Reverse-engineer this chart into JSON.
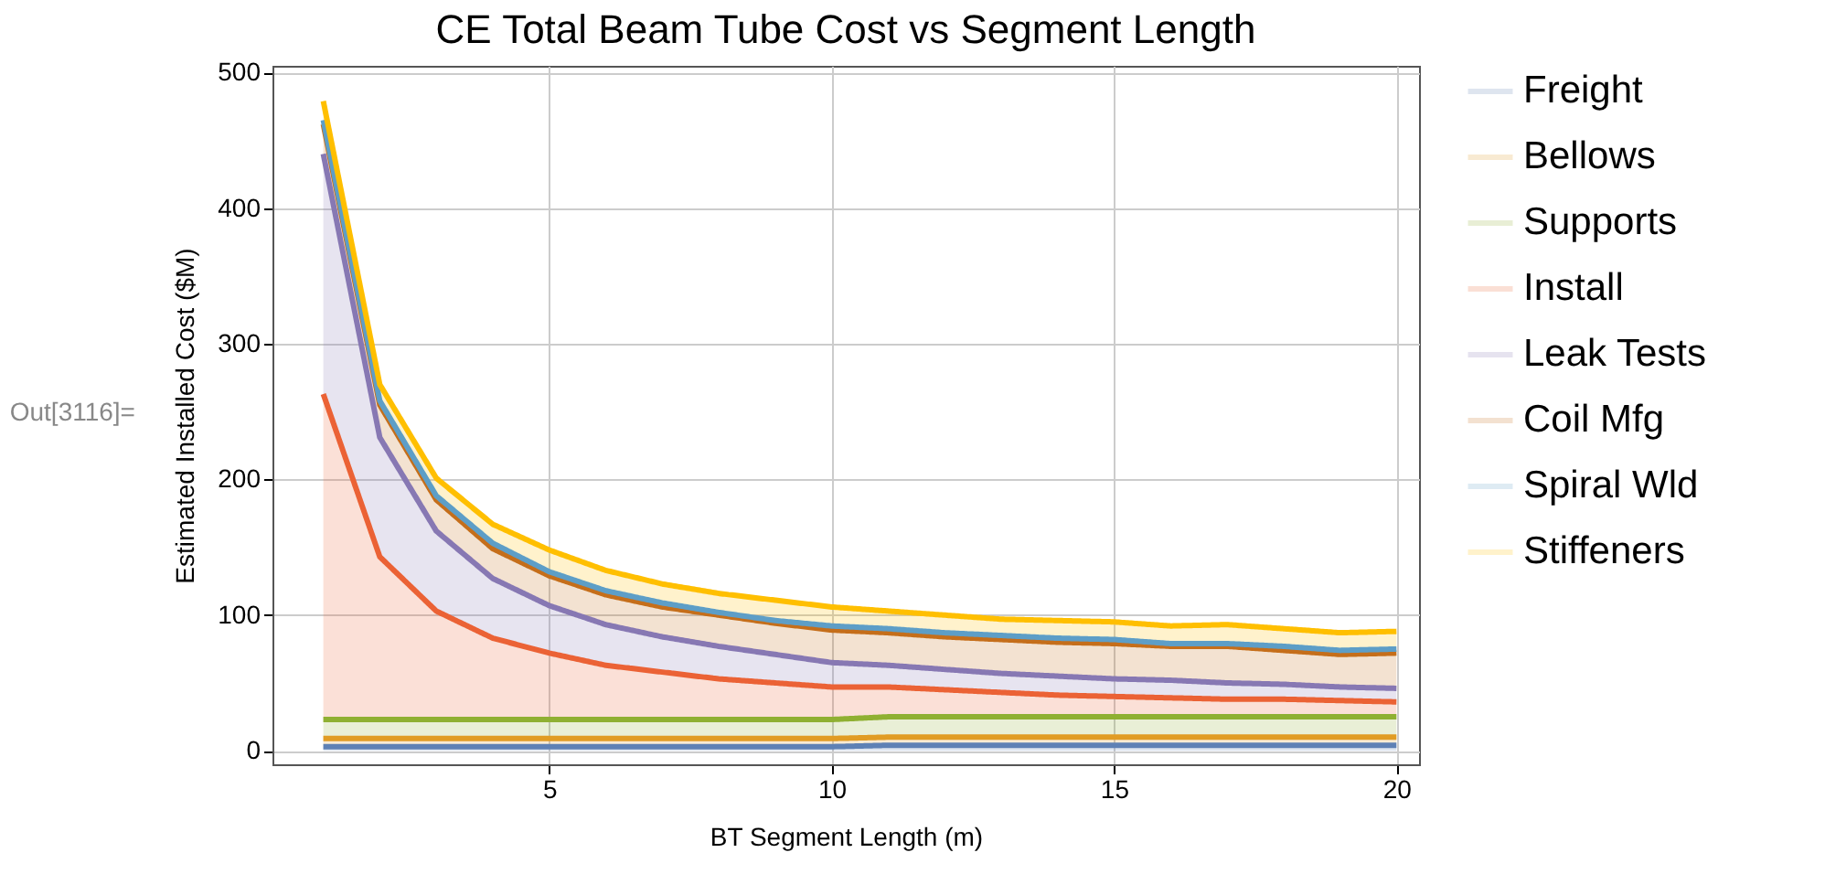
{
  "chart_data": {
    "type": "area",
    "stacked": true,
    "title": "CE Total Beam Tube Cost vs Segment Length",
    "xlabel": "BT Segment Length (m)",
    "ylabel": "Estimated Installed Cost ($M)",
    "annotations": [
      "Out[3116]="
    ],
    "x": [
      1,
      2,
      3,
      4,
      5,
      6,
      7,
      8,
      9,
      10,
      11,
      12,
      13,
      14,
      15,
      16,
      17,
      18,
      19,
      20
    ],
    "series": [
      {
        "name": "Freight",
        "color": "#5e81b5",
        "values": [
          3,
          3,
          3,
          3,
          3,
          3,
          3,
          3,
          3,
          3,
          4,
          4,
          4,
          4,
          4,
          4,
          4,
          4,
          4,
          4
        ]
      },
      {
        "name": "Bellows",
        "color": "#e19c24",
        "values": [
          6,
          6,
          6,
          6,
          6,
          6,
          6,
          6,
          6,
          6,
          6,
          6,
          6,
          6,
          6,
          6,
          6,
          6,
          6,
          6
        ]
      },
      {
        "name": "Supports",
        "color": "#8fb032",
        "values": [
          14,
          14,
          14,
          14,
          14,
          14,
          14,
          14,
          14,
          14,
          15,
          15,
          15,
          15,
          15,
          15,
          15,
          15,
          15,
          15
        ]
      },
      {
        "name": "Install",
        "color": "#eb6235",
        "values": [
          240,
          120,
          80,
          60,
          49,
          40,
          35,
          30,
          27,
          24,
          22,
          20,
          18,
          16,
          15,
          14,
          13,
          13,
          12,
          11
        ]
      },
      {
        "name": "Leak Tests",
        "color": "#8778b3",
        "values": [
          177,
          88,
          59,
          44,
          35,
          30,
          26,
          24,
          21,
          18,
          16,
          15,
          14,
          14,
          13,
          13,
          12,
          11,
          10,
          10
        ]
      },
      {
        "name": "Coil Mfg",
        "color": "#c56e1a",
        "values": [
          22,
          24,
          23,
          22,
          22,
          22,
          22,
          23,
          23,
          24,
          24,
          24,
          25,
          25,
          26,
          25,
          27,
          25,
          24,
          26
        ]
      },
      {
        "name": "Spiral Wld",
        "color": "#5d9ec7",
        "values": [
          3,
          3,
          3,
          4,
          3,
          3,
          3,
          2,
          2,
          3,
          3,
          3,
          3,
          3,
          3,
          2,
          2,
          3,
          3,
          3
        ]
      },
      {
        "name": "Stiffeners",
        "color": "#ffbf00",
        "values": [
          14,
          12,
          13,
          14,
          16,
          15,
          14,
          14,
          15,
          14,
          13,
          13,
          12,
          13,
          13,
          13,
          14,
          13,
          13,
          13
        ]
      }
    ],
    "xlim": [
      0.1,
      20.4
    ],
    "ylim": [
      -10,
      505
    ],
    "xticks": [
      5,
      10,
      15,
      20
    ],
    "yticks": [
      0,
      100,
      200,
      300,
      400,
      500
    ],
    "grid": true,
    "legend": "right",
    "marker": "none",
    "line_style": "solid"
  }
}
